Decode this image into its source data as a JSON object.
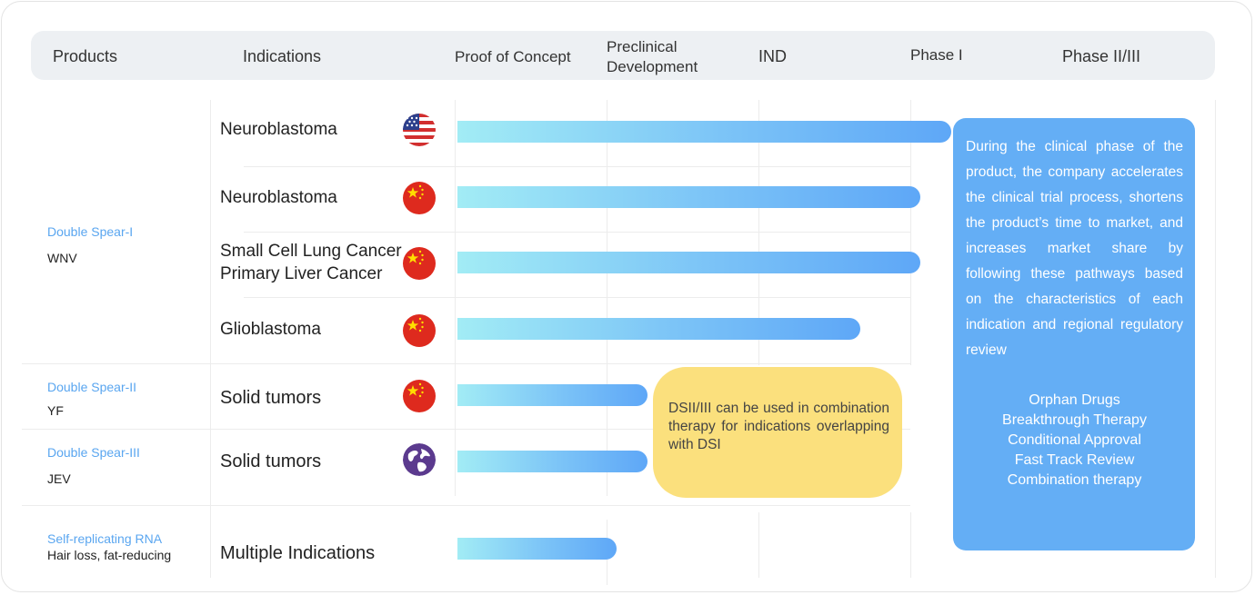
{
  "header": {
    "products": "Products",
    "indications": "Indications",
    "stages": [
      "Proof of Concept",
      "Preclinical Development",
      "IND",
      "Phase I",
      "Phase II/III"
    ]
  },
  "products": [
    {
      "name": "Double Spear-I",
      "code": "WNV"
    },
    {
      "name": "Double Spear-II",
      "code": "YF"
    },
    {
      "name": "Double Spear-III",
      "code": "JEV"
    },
    {
      "name": "Self-replicating RNA",
      "code": "Hair loss, fat-reducing"
    }
  ],
  "pipeline": [
    {
      "indication": [
        "Neuroblastoma"
      ],
      "region_icon": "usa-flag-icon",
      "progress_stage": 3.25
    },
    {
      "indication": [
        "Neuroblastoma"
      ],
      "region_icon": "china-flag-icon",
      "progress_stage": 3.05
    },
    {
      "indication": [
        "Small Cell Lung Cancer",
        "Primary Liver Cancer"
      ],
      "region_icon": "china-flag-icon",
      "progress_stage": 3.05
    },
    {
      "indication": [
        "Glioblastoma"
      ],
      "region_icon": "china-flag-icon",
      "progress_stage": 2.65
    },
    {
      "indication": [
        "Solid tumors"
      ],
      "region_icon": "china-flag-icon",
      "progress_stage": 1.25
    },
    {
      "indication": [
        "Solid tumors"
      ],
      "region_icon": "globe-icon",
      "progress_stage": 1.25
    },
    {
      "indication": [
        "Multiple Indications"
      ],
      "region_icon": "",
      "progress_stage": 1.05
    }
  ],
  "callout": "DSII/III can be used in combination therapy for indications overlapping with DSI",
  "clinical_box": {
    "description": "During the clinical phase of the product, the company accelerates the clinical trial process, shortens the product’s time to market, and increases market share by following these pathways based on the characteristics of each indication and regional regulatory review",
    "pathways": [
      "Orphan Drugs",
      "Breakthrough Therapy",
      "Conditional Approval",
      "Fast Track Review",
      "Combination therapy"
    ]
  },
  "colors": {
    "bar_start": "#a2ecf5",
    "bar_end": "#5ea7f7",
    "product_name": "#5aa6f0",
    "callout_bg": "#fbe07d",
    "clinical_box_bg": "#64aef5",
    "header_bg": "#edf0f3"
  }
}
